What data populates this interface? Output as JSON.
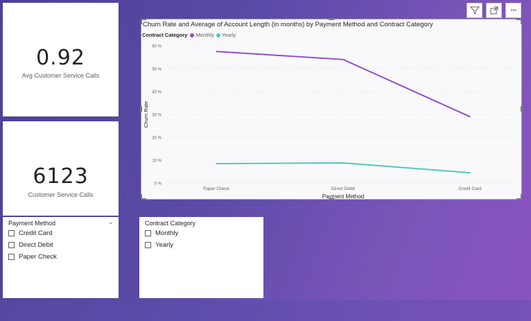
{
  "kpi1": {
    "value": "0.92",
    "label": "Avg Customer Service Calls"
  },
  "kpi2": {
    "value": "6123",
    "label": "Customer Service Calls"
  },
  "payment_slicer": {
    "title": "Payment Method",
    "items": [
      "Credit Card",
      "Direct Debit",
      "Paper Check"
    ]
  },
  "contract_slicer": {
    "title": "Contract Category",
    "items": [
      "Monthly",
      "Yearly"
    ]
  },
  "toolbar": {
    "filter_icon": "filter-icon",
    "focus_icon": "focus-mode-icon",
    "more_icon": "more-options-icon",
    "more_label": "···"
  },
  "chart_data": {
    "type": "line",
    "title": "Churn Rate and Average of Account Length (in months) by Payment Method and Contract Category",
    "legend_title": "Contract Category",
    "categories": [
      "Paper Check",
      "Direct Debit",
      "Credit Card"
    ],
    "series": [
      {
        "name": "Monthly",
        "color": "#8e4fc9",
        "values": [
          57.5,
          54,
          29
        ]
      },
      {
        "name": "Yearly",
        "color": "#4ec8bf",
        "values": [
          8.5,
          8.8,
          4.5
        ]
      }
    ],
    "yticks": [
      "0 %",
      "10 %",
      "20 %",
      "30 %",
      "40 %",
      "50 %",
      "60 %"
    ],
    "ylim": [
      0,
      60
    ],
    "xlabel": "Payment Method",
    "ylabel": "Churn Rate",
    "grid": true,
    "legend_position": "top-left"
  }
}
